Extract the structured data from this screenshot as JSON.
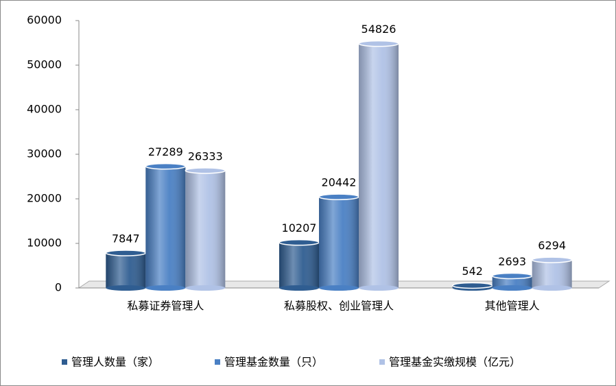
{
  "chart_data": {
    "type": "bar",
    "categories": [
      "私募证券管理人",
      "私募股权、创业管理人",
      "其他管理人"
    ],
    "series": [
      {
        "name": "管理人数量（家）",
        "color": "#2f5d91",
        "values": [
          7847,
          10207,
          542
        ]
      },
      {
        "name": "管理基金数量（只）",
        "color": "#4a80c4",
        "values": [
          27289,
          20442,
          2693
        ]
      },
      {
        "name": "管理基金实缴规模（亿元）",
        "color": "#b0c2e6",
        "values": [
          26333,
          54826,
          6294
        ]
      }
    ],
    "ylim": [
      0,
      60000
    ],
    "yticks": [
      0,
      10000,
      20000,
      30000,
      40000,
      50000,
      60000
    ],
    "legend": "bottom"
  }
}
